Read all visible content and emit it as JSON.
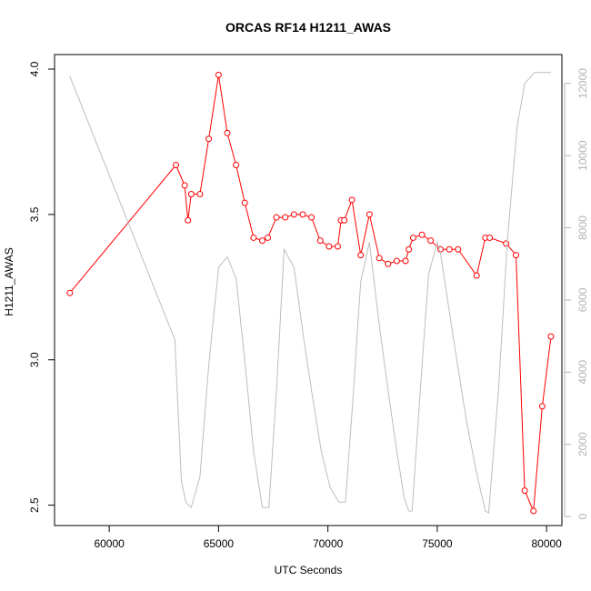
{
  "chart_data": {
    "type": "line",
    "title": "ORCAS RF14 H1211_AWAS",
    "xlabel": "UTC Seconds",
    "ylabel": "H1211_AWAS",
    "xlim": [
      57500,
      80700
    ],
    "ylim": [
      2.43,
      4.05
    ],
    "y2lim": [
      -250,
      12800
    ],
    "x_ticks": [
      60000,
      65000,
      70000,
      75000,
      80000
    ],
    "y_ticks": [
      2.5,
      3.0,
      3.5,
      4.0
    ],
    "y2_ticks": [
      0,
      2000,
      4000,
      6000,
      8000,
      10000,
      12000
    ],
    "x_tick_labels": [
      "60000",
      "65000",
      "70000",
      "75000",
      "80000"
    ],
    "y_tick_labels": [
      "2.5",
      "3.0",
      "3.5",
      "4.0"
    ],
    "y2_tick_labels": [
      "0",
      "2000",
      "4000",
      "6000",
      "8000",
      "10000",
      "12000"
    ],
    "grid": false,
    "colors": {
      "primary": "#ff0000",
      "secondary": "#bebebe",
      "axis2": "#b3b3b3"
    },
    "series": [
      {
        "axis": "left",
        "style": "line+markers",
        "x": [
          58200,
          63050,
          63450,
          63600,
          63750,
          64150,
          64550,
          65000,
          65400,
          65800,
          66200,
          66600,
          67000,
          67250,
          67650,
          68050,
          68450,
          68850,
          69250,
          69650,
          70050,
          70450,
          70600,
          70750,
          71100,
          71500,
          71900,
          72350,
          72750,
          73150,
          73550,
          73700,
          73900,
          74300,
          74700,
          75150,
          75550,
          75950,
          76800,
          77200,
          77400,
          78150,
          78600,
          79000,
          79400,
          79800,
          80200
        ],
        "y": [
          3.23,
          3.67,
          3.6,
          3.48,
          3.57,
          3.57,
          3.76,
          3.98,
          3.78,
          3.67,
          3.54,
          3.42,
          3.41,
          3.42,
          3.49,
          3.49,
          3.5,
          3.5,
          3.49,
          3.41,
          3.39,
          3.39,
          3.48,
          3.48,
          3.55,
          3.36,
          3.5,
          3.35,
          3.33,
          3.34,
          3.34,
          3.38,
          3.42,
          3.43,
          3.41,
          3.38,
          3.38,
          3.38,
          3.29,
          3.42,
          3.42,
          3.4,
          3.36,
          2.55,
          2.48,
          2.84,
          3.08
        ]
      },
      {
        "axis": "right",
        "style": "line",
        "x": [
          58200,
          63000,
          63300,
          63500,
          63750,
          64150,
          64550,
          65000,
          65400,
          65800,
          66200,
          66600,
          67000,
          67300,
          67650,
          68000,
          68450,
          68900,
          69300,
          69700,
          70100,
          70500,
          70800,
          71150,
          71500,
          71900,
          72350,
          72750,
          73150,
          73500,
          73700,
          73850,
          74200,
          74600,
          75000,
          75150,
          75500,
          75900,
          76350,
          76800,
          77200,
          77350,
          77800,
          78200,
          78650,
          79000,
          79450,
          79900,
          80200
        ],
        "y": [
          12200,
          4900,
          1000,
          400,
          250,
          1100,
          4200,
          6900,
          7200,
          6600,
          4300,
          1800,
          250,
          250,
          3500,
          7400,
          6900,
          4900,
          3300,
          1800,
          800,
          400,
          400,
          3300,
          6500,
          7600,
          5300,
          3500,
          1800,
          500,
          150,
          150,
          3300,
          6700,
          7600,
          7300,
          5900,
          4300,
          2600,
          1200,
          150,
          100,
          3500,
          7600,
          10800,
          12000,
          12300,
          12300,
          12300
        ]
      }
    ]
  }
}
